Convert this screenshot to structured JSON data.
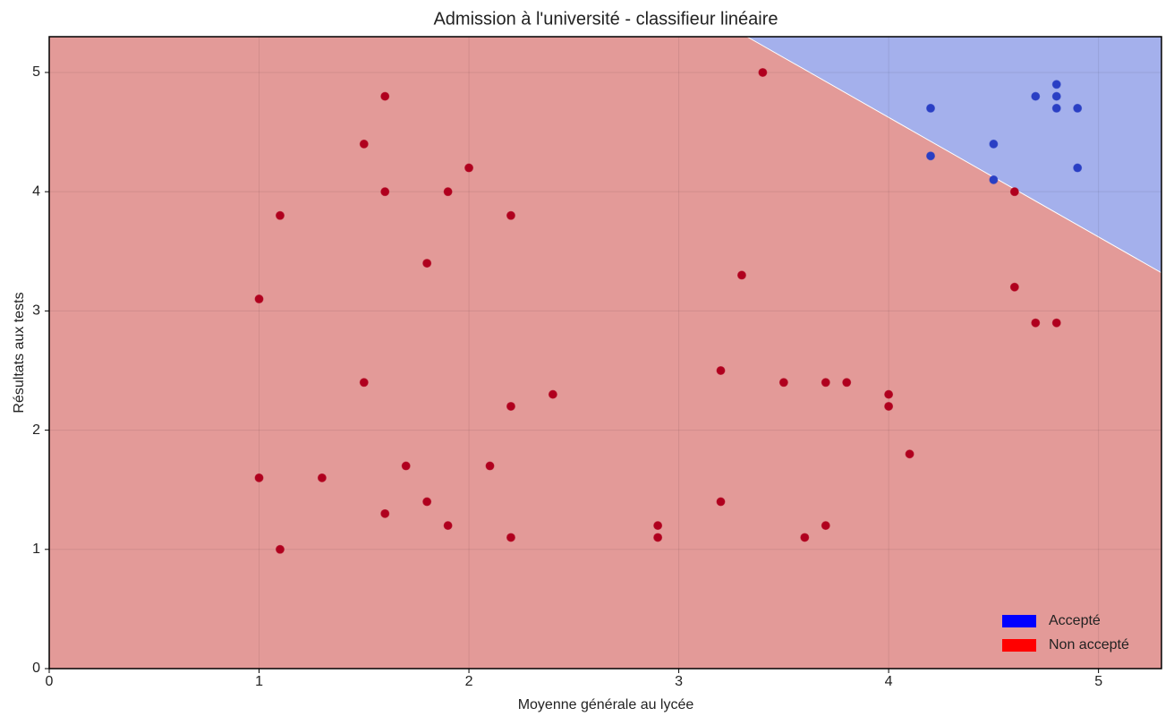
{
  "chart_data": {
    "type": "scatter",
    "title": "Admission à l'université - classifieur linéaire",
    "x_label": "Moyenne générale au lycée",
    "y_label": "Résultats aux tests",
    "xlim": [
      0,
      5.3
    ],
    "ylim": [
      0,
      5.3
    ],
    "xticks": [
      0,
      1,
      2,
      3,
      4,
      5
    ],
    "yticks": [
      0,
      1,
      2,
      3,
      4,
      5
    ],
    "grid": true,
    "legend": "lower right",
    "decision_boundary": {
      "x": [
        3.325,
        5.3
      ],
      "y": [
        5.3,
        3.32
      ]
    },
    "series": [
      {
        "name": "Accepté",
        "color": "#2a3fc4",
        "legend_color": "#0000ff",
        "region_color": "#a4b0ec",
        "x": [
          4.8,
          4.7,
          4.8,
          4.2,
          4.8,
          4.9,
          4.5,
          4.2,
          4.9,
          4.5
        ],
        "y": [
          4.9,
          4.8,
          4.8,
          4.7,
          4.7,
          4.7,
          4.4,
          4.3,
          4.2,
          4.1
        ]
      },
      {
        "name": "Non accepté",
        "color": "#b0001e",
        "legend_color": "#ff0000",
        "region_color": "#e39a98",
        "x": [
          3.4,
          1.6,
          1.5,
          2.0,
          1.6,
          1.9,
          1.1,
          2.2,
          1.8,
          3.3,
          1.0,
          4.6,
          4.6,
          4.7,
          4.8,
          3.2,
          1.5,
          3.5,
          3.7,
          3.8,
          2.4,
          4.0,
          2.2,
          4.0,
          4.1,
          1.7,
          2.1,
          1.0,
          1.3,
          1.8,
          3.2,
          1.6,
          1.9,
          2.9,
          3.7,
          2.2,
          2.9,
          3.6,
          1.1
        ],
        "y": [
          5.0,
          4.8,
          4.4,
          4.2,
          4.0,
          4.0,
          3.8,
          3.8,
          3.4,
          3.3,
          3.1,
          4.0,
          3.2,
          2.9,
          2.9,
          2.5,
          2.4,
          2.4,
          2.4,
          2.4,
          2.3,
          2.3,
          2.2,
          2.2,
          1.8,
          1.7,
          1.7,
          1.6,
          1.6,
          1.4,
          1.4,
          1.3,
          1.2,
          1.2,
          1.2,
          1.1,
          1.1,
          1.1,
          1.0
        ]
      }
    ]
  }
}
